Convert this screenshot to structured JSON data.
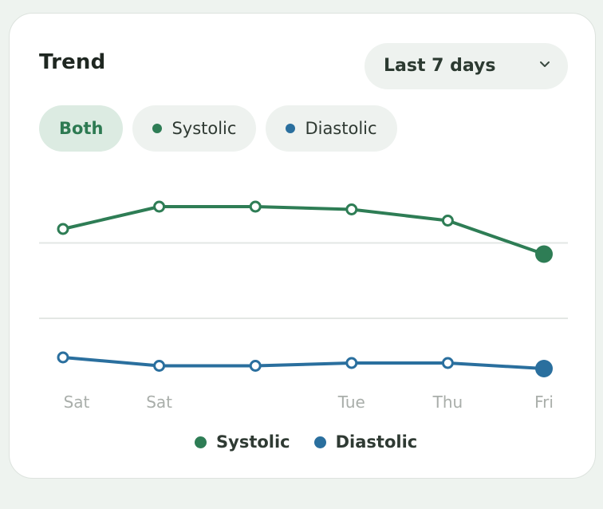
{
  "card": {
    "title": "Trend"
  },
  "range_select": {
    "label": "Last 7 days"
  },
  "filters": [
    {
      "label": "Both",
      "active": true,
      "dot_color": ""
    },
    {
      "label": "Systolic",
      "active": false,
      "dot_color": "#2e7d55"
    },
    {
      "label": "Diastolic",
      "active": false,
      "dot_color": "#2a6f9e"
    }
  ],
  "colors": {
    "systolic": "#2e7d55",
    "diastolic": "#2a6f9e",
    "grid": "#e3e7e4",
    "tick": "#a9aeaa"
  },
  "chart_data": {
    "type": "line",
    "x": [
      "Sat",
      "Sat",
      "",
      "Tue",
      "Thu",
      "Fri"
    ],
    "series": [
      {
        "name": "Systolic",
        "values": [
          130,
          138,
          138,
          137,
          133,
          121
        ]
      },
      {
        "name": "Diastolic",
        "values": [
          84,
          81,
          81,
          82,
          82,
          80
        ]
      }
    ],
    "ylim": [
      70,
      150
    ],
    "gridlines": [
      125,
      98
    ],
    "grid": true,
    "legend_position": "bottom"
  },
  "legend": [
    {
      "label": "Systolic",
      "color": "#2e7d55"
    },
    {
      "label": "Diastolic",
      "color": "#2a6f9e"
    }
  ]
}
